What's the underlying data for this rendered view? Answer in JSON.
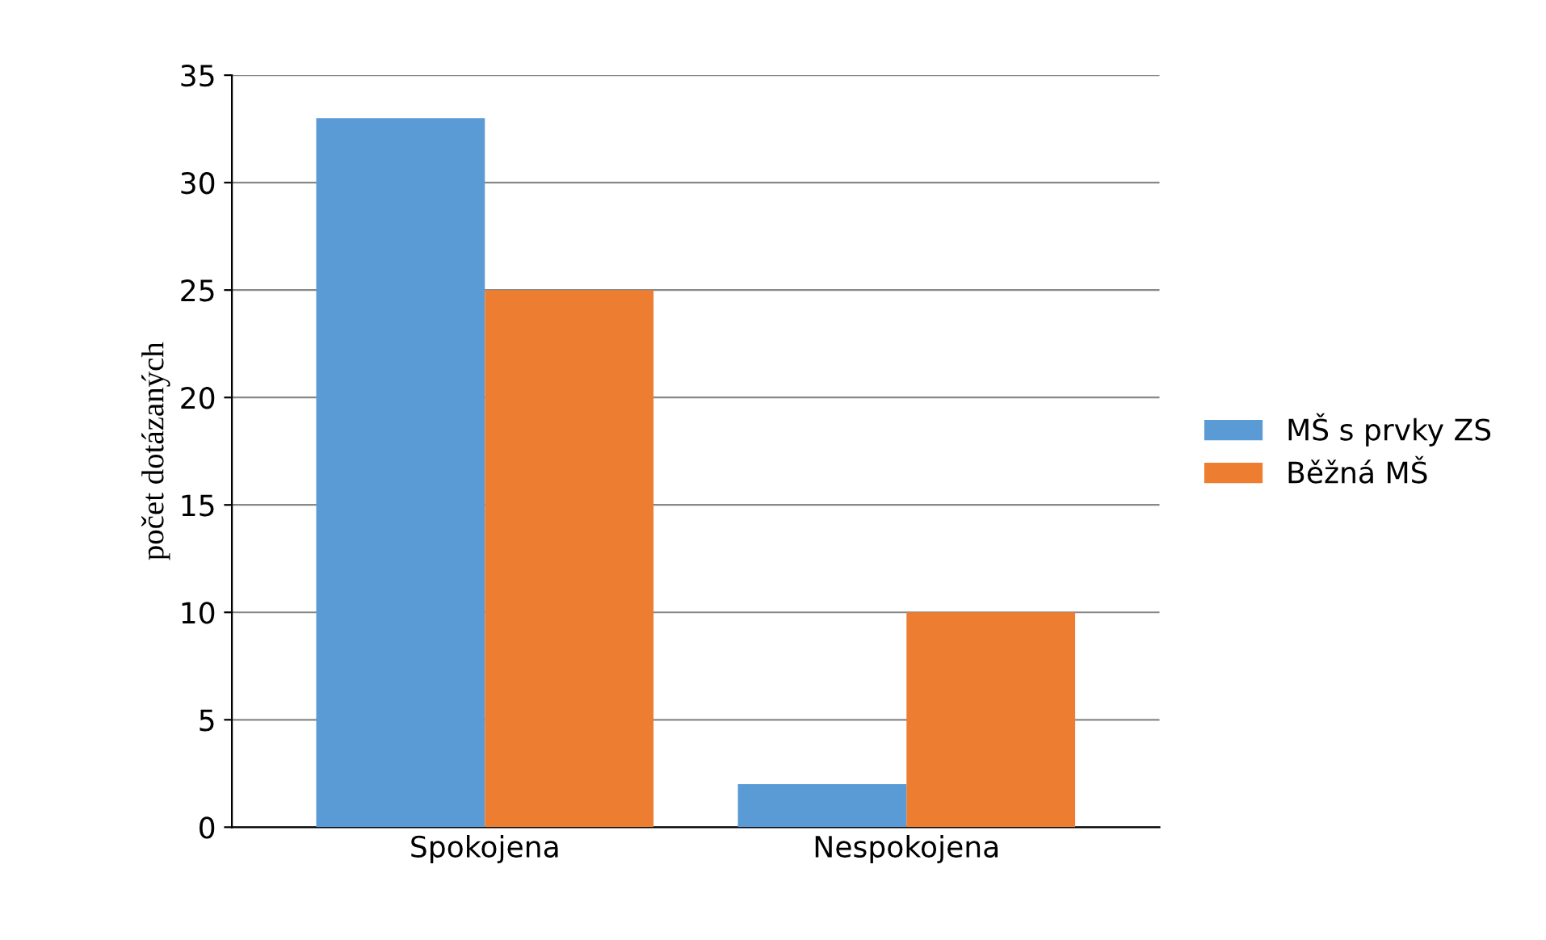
{
  "chart_data": {
    "type": "bar",
    "ylabel": "počet dotázaných",
    "categories": [
      "Spokojena",
      "Nespokojena"
    ],
    "series": [
      {
        "name": "MŠ s prvky ZS",
        "color": "#5b9bd5",
        "values": [
          33,
          2
        ]
      },
      {
        "name": "Běžná MŠ",
        "color": "#ed7d31",
        "values": [
          25,
          10
        ]
      }
    ],
    "ylim": [
      0,
      35
    ],
    "yticks": [
      0,
      5,
      10,
      15,
      20,
      25,
      30,
      35
    ],
    "grid": "y",
    "legend": "right"
  }
}
